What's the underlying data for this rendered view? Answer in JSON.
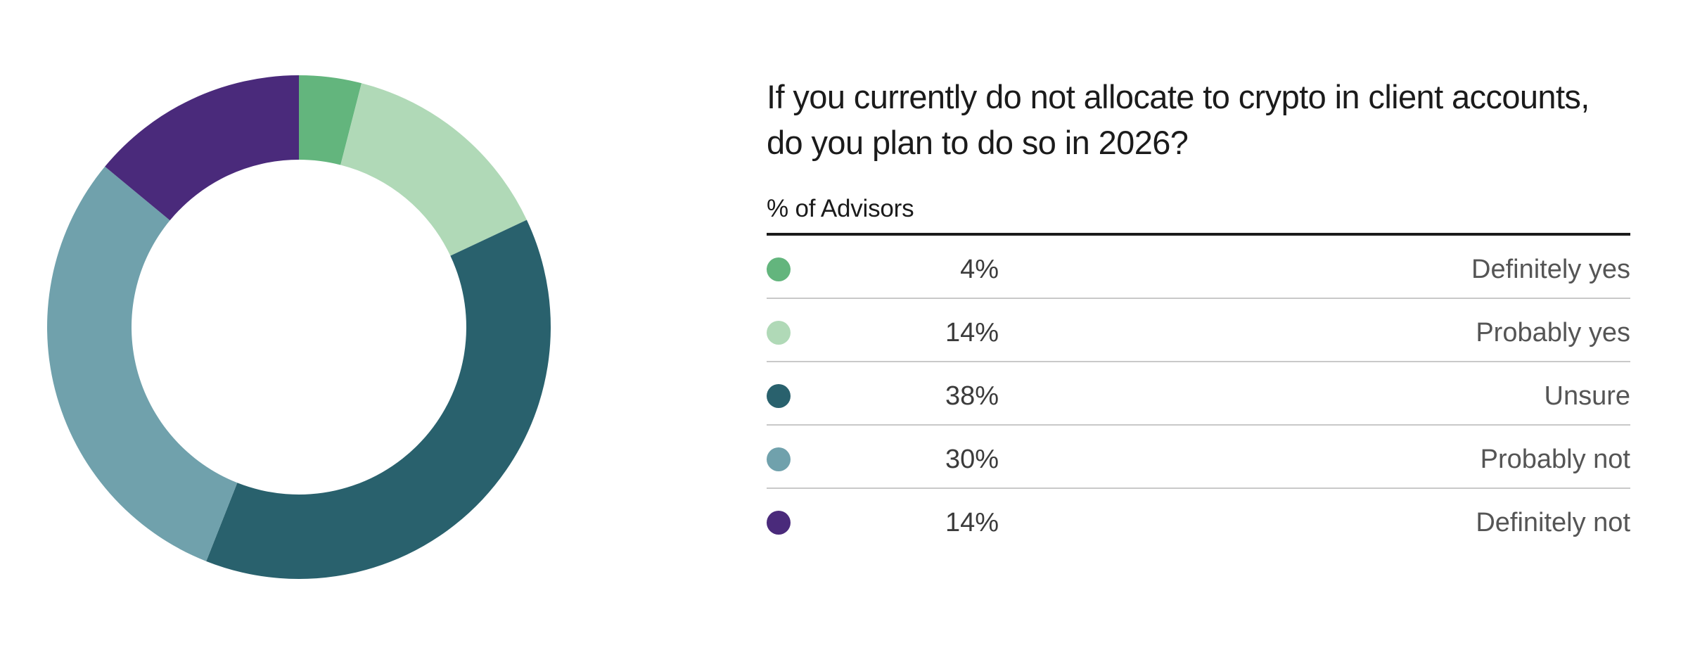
{
  "chart_data": {
    "type": "pie",
    "title": "If you currently do not allocate to crypto in client accounts, do you plan to do so in 2026?",
    "subtitle": "% of Advisors",
    "categories": [
      "Definitely yes",
      "Probably yes",
      "Unsure",
      "Probably not",
      "Definitely not"
    ],
    "values": [
      4,
      14,
      38,
      30,
      14
    ],
    "value_labels": [
      "4%",
      "14%",
      "38%",
      "30%",
      "14%"
    ],
    "colors": [
      "#63b57d",
      "#b0d9b7",
      "#29616d",
      "#70a1ac",
      "#4a2a7b"
    ],
    "donut": true,
    "start_angle": "top, clockwise"
  }
}
